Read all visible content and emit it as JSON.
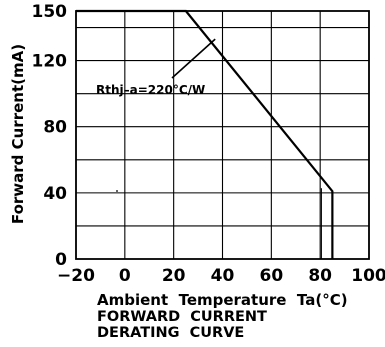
{
  "chart_data": {
    "type": "line",
    "title": "FORWARD CURRENT DERATING CURVE",
    "title_lines": [
      "FORWARD  CURRENT",
      "DERATING  CURVE"
    ],
    "xlabel": "Ambient  Temperature  Ta(°C)",
    "ylabel": "Forward  Current(mA)",
    "xlim": [
      -20,
      100
    ],
    "ylim": [
      0,
      150
    ],
    "x_ticks": [
      -20,
      0,
      20,
      40,
      60,
      80,
      100
    ],
    "y_ticks": [
      0,
      40,
      80,
      120,
      150
    ],
    "x_tick_labels": [
      "−20",
      "0",
      "20",
      "40",
      "60",
      "80",
      "100"
    ],
    "y_tick_labels": [
      "0",
      "40",
      "80",
      "120",
      "150"
    ],
    "grid": true,
    "grid_x": [
      -20,
      0,
      20,
      40,
      60,
      80,
      100
    ],
    "grid_y": [
      0,
      20,
      40,
      60,
      80,
      100,
      120,
      140,
      150
    ],
    "series": [
      {
        "x": [
          -20,
          25,
          85,
          85
        ],
        "y": [
          150,
          150,
          41,
          0
        ]
      }
    ],
    "annotation": {
      "text": "Rthj–a=220°C/W",
      "points_to": [
        37,
        133
      ]
    }
  }
}
